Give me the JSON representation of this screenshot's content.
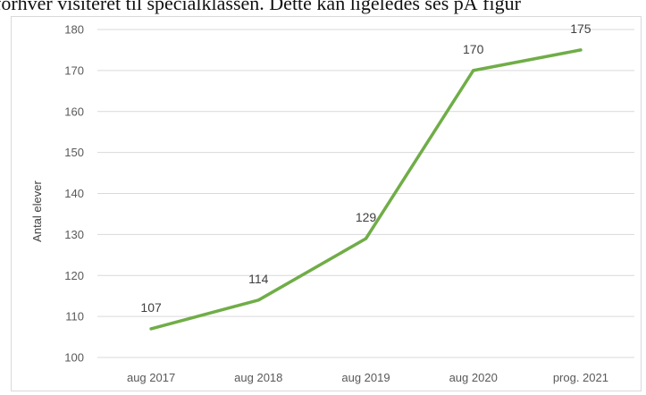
{
  "header_text": "forhver visiteret til specialklassen. Dette kan ligeledes ses pÅ figur",
  "chart_data": {
    "type": "line",
    "categories": [
      "aug 2017",
      "aug 2018",
      "aug 2019",
      "aug 2020",
      "prog. 2021"
    ],
    "series": [
      {
        "values": [
          107,
          114,
          129,
          170,
          175
        ],
        "color": "#70ad47"
      }
    ],
    "data_labels": [
      "107",
      "114",
      "129",
      "170",
      "175"
    ],
    "title": "",
    "xlabel": "",
    "ylabel": "Antal elever",
    "ylim": [
      100,
      180
    ],
    "yticks": [
      100,
      110,
      120,
      130,
      140,
      150,
      160,
      170,
      180
    ],
    "grid": true,
    "legend": "none"
  }
}
